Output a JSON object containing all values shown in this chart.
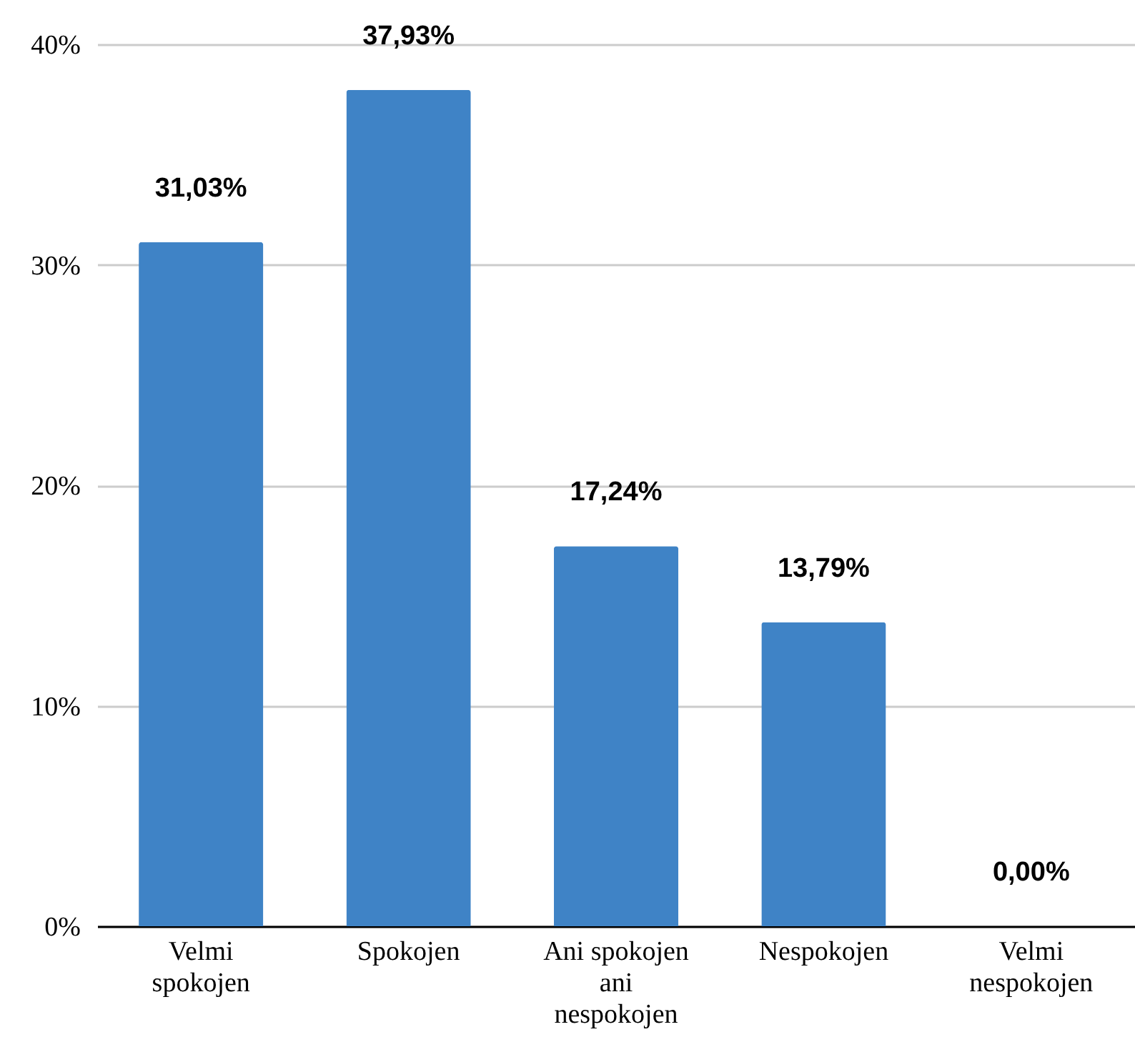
{
  "chart_data": {
    "type": "bar",
    "categories": [
      "Velmi spokojen",
      "Spokojen",
      "Ani spokojen ani nespokojen",
      "Nespokojen",
      "Velmi nespokojen"
    ],
    "values": [
      31.03,
      37.93,
      17.24,
      13.79,
      0
    ],
    "value_labels": [
      "31,03%",
      "37,93%",
      "17,24%",
      "13,79%",
      "0,00%"
    ],
    "color": "#3f83c6",
    "ylim": [
      0,
      40
    ],
    "yticks": [
      {
        "value": 0,
        "label": "0%"
      },
      {
        "value": 10,
        "label": "10%"
      },
      {
        "value": 20,
        "label": "20%"
      },
      {
        "value": 30,
        "label": "30%"
      },
      {
        "value": 40,
        "label": "40%"
      }
    ],
    "grid": "y"
  }
}
